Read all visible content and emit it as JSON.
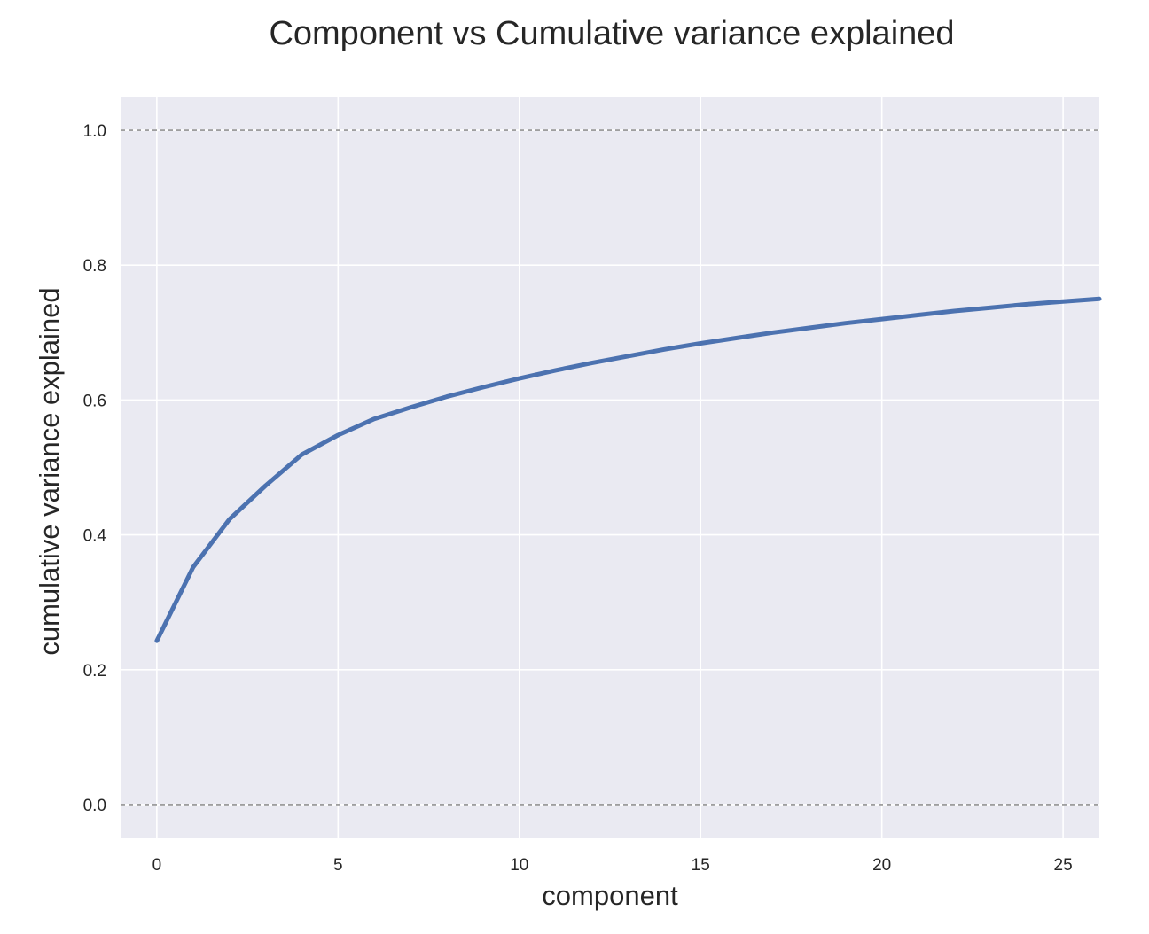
{
  "chart_data": {
    "type": "line",
    "title": "Component vs Cumulative variance explained",
    "xlabel": "component",
    "ylabel": "cumulative variance explained",
    "xlim": [
      -1,
      26
    ],
    "ylim": [
      -0.05,
      1.05
    ],
    "xticks": [
      0,
      5,
      10,
      15,
      20,
      25
    ],
    "xtick_labels": [
      "0",
      "5",
      "10",
      "15",
      "20",
      "25"
    ],
    "yticks": [
      0.0,
      0.2,
      0.4,
      0.6,
      0.8,
      1.0
    ],
    "ytick_labels": [
      "0.0",
      "0.2",
      "0.4",
      "0.6",
      "0.8",
      "1.0"
    ],
    "grid": true,
    "reference_lines": [
      {
        "y": 0.0,
        "style": "dashed",
        "color": "#808080"
      },
      {
        "y": 1.0,
        "style": "dashed",
        "color": "#808080"
      }
    ],
    "series": [
      {
        "color": "#4c72b0",
        "x": [
          0,
          1,
          2,
          3,
          4,
          5,
          6,
          7,
          8,
          9,
          10,
          11,
          12,
          13,
          14,
          15,
          16,
          17,
          18,
          19,
          20,
          21,
          22,
          23,
          24,
          25,
          26
        ],
        "y": [
          0.243,
          0.352,
          0.423,
          0.473,
          0.519,
          0.548,
          0.572,
          0.589,
          0.605,
          0.619,
          0.632,
          0.644,
          0.655,
          0.665,
          0.675,
          0.684,
          0.692,
          0.7,
          0.707,
          0.714,
          0.72,
          0.726,
          0.732,
          0.737,
          0.742,
          0.746,
          0.75
        ]
      }
    ]
  },
  "colors": {
    "plot_background": "#eaeaf2",
    "grid": "#ffffff",
    "text": "#262626"
  }
}
